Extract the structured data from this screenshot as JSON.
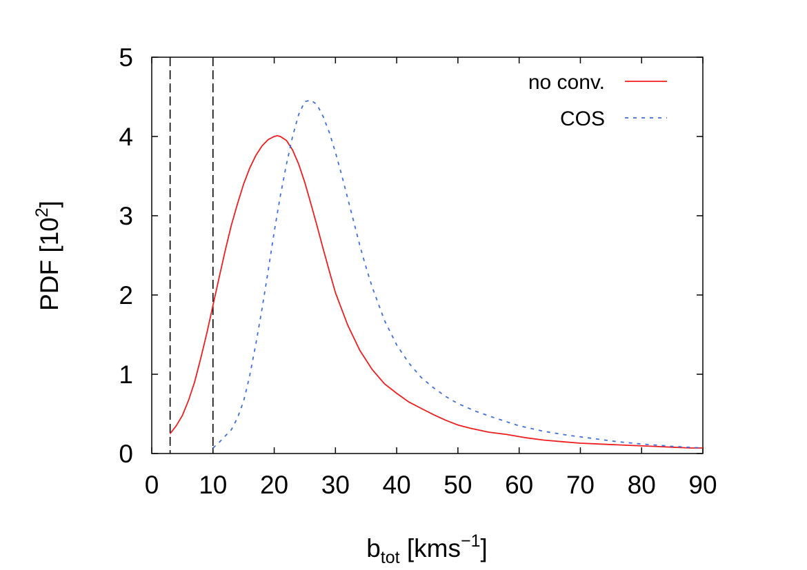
{
  "chart_data": {
    "type": "line",
    "title": "",
    "xlabel": {
      "base": "b",
      "sub": "tot",
      "pre": " [kms",
      "sup": "−1",
      "post": "]"
    },
    "ylabel": {
      "pre": "PDF [10",
      "sup": "2",
      "post": "]"
    },
    "xlim": [
      0,
      90
    ],
    "ylim": [
      0,
      5
    ],
    "xticks": [
      0,
      10,
      20,
      30,
      40,
      50,
      60,
      70,
      80,
      90
    ],
    "yticks": [
      0,
      1,
      2,
      3,
      4,
      5
    ],
    "xtick_labels": [
      "0",
      "10",
      "20",
      "30",
      "40",
      "50",
      "60",
      "70",
      "80",
      "90"
    ],
    "ytick_labels": [
      "0",
      "1",
      "2",
      "3",
      "4",
      "5"
    ],
    "grid": false,
    "legend_position": "top-right",
    "vlines": [
      {
        "x": 3,
        "style": "dashed",
        "color": "#000000"
      },
      {
        "x": 10,
        "style": "dashed",
        "color": "#000000"
      }
    ],
    "series": [
      {
        "name": "no conv.",
        "color": "#ee1c1c",
        "style": "solid",
        "x": [
          3,
          4,
          5,
          6,
          7,
          8,
          9,
          10,
          11,
          12,
          13,
          14,
          15,
          16,
          17,
          18,
          19,
          20,
          20.5,
          21,
          22,
          23,
          24,
          25,
          26,
          27,
          28,
          29,
          30,
          32,
          34,
          36,
          38,
          40,
          42,
          44,
          46,
          48,
          50,
          52,
          55,
          58,
          61,
          64,
          67,
          70,
          73,
          76,
          79,
          82,
          85,
          88,
          90
        ],
        "y": [
          0.25,
          0.35,
          0.48,
          0.67,
          0.9,
          1.2,
          1.52,
          1.87,
          2.22,
          2.56,
          2.88,
          3.15,
          3.4,
          3.6,
          3.76,
          3.88,
          3.96,
          4.0,
          4.01,
          4.0,
          3.95,
          3.83,
          3.65,
          3.42,
          3.15,
          2.87,
          2.58,
          2.3,
          2.03,
          1.62,
          1.3,
          1.06,
          0.88,
          0.76,
          0.65,
          0.57,
          0.49,
          0.42,
          0.36,
          0.32,
          0.27,
          0.24,
          0.2,
          0.17,
          0.15,
          0.13,
          0.12,
          0.11,
          0.1,
          0.09,
          0.08,
          0.07,
          0.07
        ]
      },
      {
        "name": "COS",
        "color": "#3d6ee0",
        "style": "dashed",
        "x": [
          10,
          11,
          12,
          13,
          14,
          15,
          16,
          17,
          18,
          19,
          20,
          21,
          22,
          23,
          24,
          25,
          26,
          27,
          28,
          29,
          30,
          31,
          32,
          33,
          34,
          35,
          36,
          38,
          40,
          42,
          44,
          46,
          48,
          50,
          53,
          56,
          60,
          64,
          68,
          72,
          76,
          80,
          85,
          90
        ],
        "y": [
          0.07,
          0.14,
          0.22,
          0.3,
          0.45,
          0.66,
          0.98,
          1.38,
          1.82,
          2.3,
          2.8,
          3.25,
          3.65,
          4.0,
          4.28,
          4.44,
          4.46,
          4.4,
          4.25,
          4.05,
          3.8,
          3.52,
          3.22,
          2.92,
          2.62,
          2.35,
          2.1,
          1.68,
          1.37,
          1.14,
          0.96,
          0.83,
          0.72,
          0.63,
          0.53,
          0.45,
          0.35,
          0.28,
          0.23,
          0.19,
          0.15,
          0.12,
          0.09,
          0.07
        ]
      }
    ]
  }
}
